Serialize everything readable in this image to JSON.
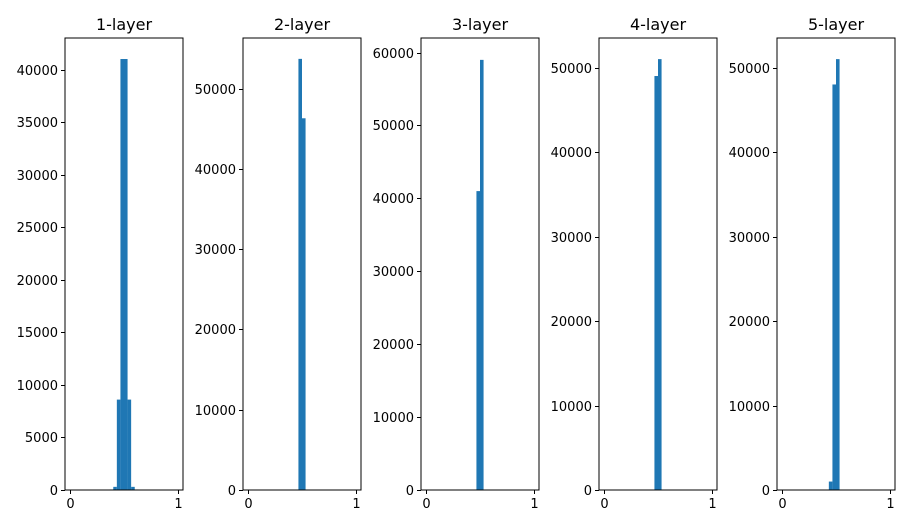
{
  "chart_data": [
    {
      "type": "bar",
      "title": "1-layer",
      "xlim": [
        -0.05,
        1.05
      ],
      "ylim": [
        0,
        43000
      ],
      "xticks": [
        0,
        1
      ],
      "xtick_labels": [
        "0",
        "1"
      ],
      "yticks": [
        0,
        5000,
        10000,
        15000,
        20000,
        25000,
        30000,
        35000,
        40000
      ],
      "ytick_labels": [
        "0",
        "5000",
        "10000",
        "15000",
        "20000",
        "25000",
        "30000",
        "35000",
        "40000"
      ],
      "bin_width": 0.0333,
      "bins": [
        {
          "x": 0.3667,
          "value": 50
        },
        {
          "x": 0.4,
          "value": 300
        },
        {
          "x": 0.4333,
          "value": 8600
        },
        {
          "x": 0.4667,
          "value": 41000
        },
        {
          "x": 0.5,
          "value": 41000
        },
        {
          "x": 0.5333,
          "value": 8600
        },
        {
          "x": 0.5667,
          "value": 300
        },
        {
          "x": 0.6,
          "value": 50
        }
      ],
      "color": "#1f77b4"
    },
    {
      "type": "bar",
      "title": "2-layer",
      "xlim": [
        -0.05,
        1.05
      ],
      "ylim": [
        0,
        56300
      ],
      "xticks": [
        0,
        1
      ],
      "xtick_labels": [
        "0",
        "1"
      ],
      "yticks": [
        0,
        10000,
        20000,
        30000,
        40000,
        50000
      ],
      "ytick_labels": [
        "0",
        "10000",
        "20000",
        "30000",
        "40000",
        "50000"
      ],
      "bin_width": 0.0333,
      "bins": [
        {
          "x": 0.4667,
          "value": 53700
        },
        {
          "x": 0.5,
          "value": 46300
        }
      ],
      "color": "#1f77b4"
    },
    {
      "type": "bar",
      "title": "3-layer",
      "xlim": [
        -0.05,
        1.05
      ],
      "ylim": [
        0,
        62000
      ],
      "xticks": [
        0,
        1
      ],
      "xtick_labels": [
        "0",
        "1"
      ],
      "yticks": [
        0,
        10000,
        20000,
        30000,
        40000,
        50000,
        60000
      ],
      "ytick_labels": [
        "0",
        "10000",
        "20000",
        "30000",
        "40000",
        "50000",
        "60000"
      ],
      "bin_width": 0.0333,
      "bins": [
        {
          "x": 0.4667,
          "value": 41000
        },
        {
          "x": 0.5,
          "value": 59000
        }
      ],
      "color": "#1f77b4"
    },
    {
      "type": "bar",
      "title": "4-layer",
      "xlim": [
        -0.05,
        1.05
      ],
      "ylim": [
        0,
        53500
      ],
      "xticks": [
        0,
        1
      ],
      "xtick_labels": [
        "0",
        "1"
      ],
      "yticks": [
        0,
        10000,
        20000,
        30000,
        40000,
        50000
      ],
      "ytick_labels": [
        "0",
        "10000",
        "20000",
        "30000",
        "40000",
        "50000"
      ],
      "bin_width": 0.0333,
      "bins": [
        {
          "x": 0.4667,
          "value": 49000
        },
        {
          "x": 0.5,
          "value": 51000
        }
      ],
      "color": "#1f77b4"
    },
    {
      "type": "bar",
      "title": "5-layer",
      "xlim": [
        -0.05,
        1.05
      ],
      "ylim": [
        0,
        53500
      ],
      "xticks": [
        0,
        1
      ],
      "xtick_labels": [
        "0",
        "1"
      ],
      "yticks": [
        0,
        10000,
        20000,
        30000,
        40000,
        50000
      ],
      "ytick_labels": [
        "0",
        "10000",
        "20000",
        "30000",
        "40000",
        "50000"
      ],
      "bin_width": 0.0333,
      "bins": [
        {
          "x": 0.4333,
          "value": 1000
        },
        {
          "x": 0.4667,
          "value": 48000
        },
        {
          "x": 0.5,
          "value": 51000
        }
      ],
      "color": "#1f77b4"
    }
  ]
}
